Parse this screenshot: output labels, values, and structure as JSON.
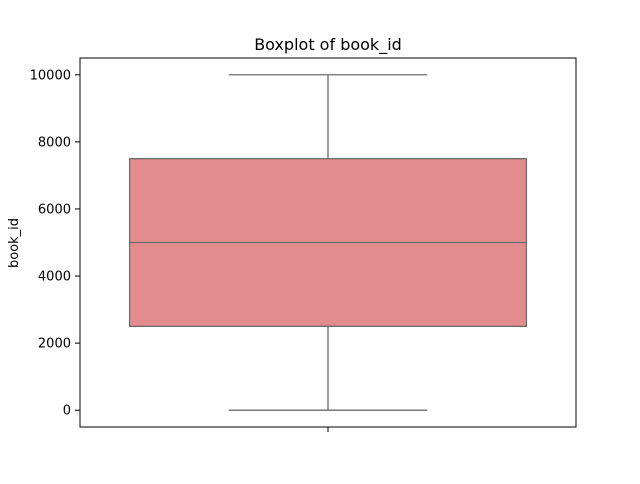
{
  "chart_data": {
    "type": "box",
    "title": "Boxplot of book_id",
    "xlabel": "",
    "ylabel": "book_id",
    "ylim": [
      -500,
      10500
    ],
    "yticks": [
      0,
      2000,
      4000,
      6000,
      8000,
      10000
    ],
    "ytick_labels": [
      "0",
      "2000",
      "4000",
      "6000",
      "8000",
      "10000"
    ],
    "xticks": [
      ""
    ],
    "grid": false,
    "series": [
      {
        "min": 1,
        "q1": 2500,
        "median": 5000,
        "q3": 7500,
        "max": 10000
      }
    ],
    "colors": {
      "box_fill": "#e28c8d",
      "box_edge": "#6b6b6b",
      "axes": "#000000"
    }
  }
}
